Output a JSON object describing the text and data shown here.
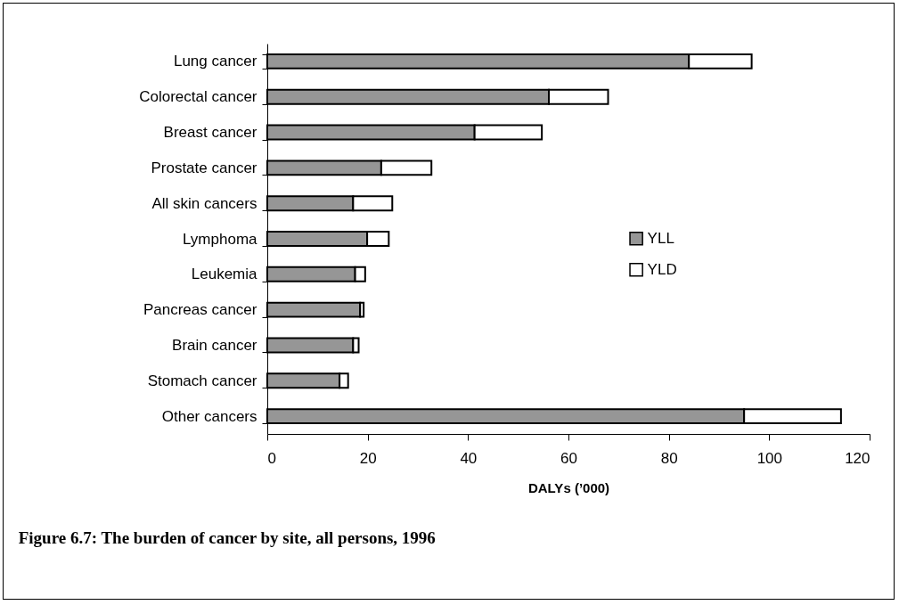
{
  "chart_data": {
    "type": "bar",
    "orientation": "horizontal",
    "stacked": true,
    "title": "Figure 6.7: The burden of cancer by site, all persons, 1996",
    "xlabel": "DALYs (’000)",
    "categories": [
      "Lung cancer",
      "Colorectal cancer",
      "Breast cancer",
      "Prostate cancer",
      "All skin cancers",
      "Lymphoma",
      "Leukemia",
      "Pancreas cancer",
      "Brain cancer",
      "Stomach cancer",
      "Other cancers"
    ],
    "series": [
      {
        "name": "YLL",
        "color": "#969696",
        "values": [
          84.0,
          56.1,
          41.3,
          22.7,
          17.1,
          19.9,
          17.5,
          18.5,
          17.1,
          14.4,
          95.0
        ]
      },
      {
        "name": "YLD",
        "color": "#ffffff",
        "values": [
          12.5,
          11.8,
          13.4,
          10.0,
          7.8,
          4.3,
          2.0,
          0.7,
          1.1,
          1.7,
          19.3
        ]
      }
    ],
    "xlim": [
      0,
      120
    ],
    "xticks": [
      0,
      20,
      40,
      60,
      80,
      100,
      120
    ],
    "grid": false,
    "legend": "right"
  }
}
